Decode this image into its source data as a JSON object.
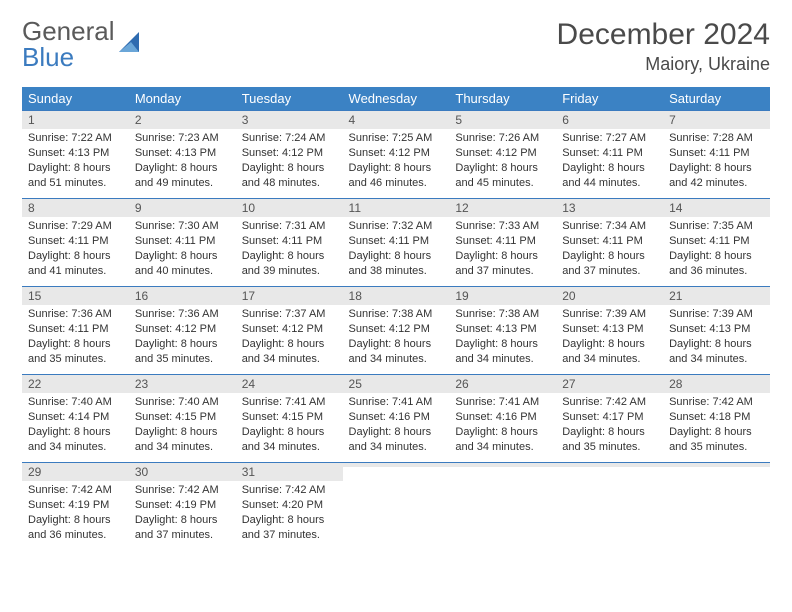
{
  "brand": {
    "part1": "General",
    "part2": "Blue"
  },
  "title": "December 2024",
  "location": "Maiory, Ukraine",
  "colors": {
    "header_bg": "#3b82c4",
    "header_fg": "#ffffff",
    "daynum_bg": "#e8e8e8",
    "border": "#3b7bbf",
    "text": "#333333"
  },
  "day_headers": [
    "Sunday",
    "Monday",
    "Tuesday",
    "Wednesday",
    "Thursday",
    "Friday",
    "Saturday"
  ],
  "weeks": [
    [
      {
        "n": "1",
        "sr": "Sunrise: 7:22 AM",
        "ss": "Sunset: 4:13 PM",
        "dl": "Daylight: 8 hours and 51 minutes."
      },
      {
        "n": "2",
        "sr": "Sunrise: 7:23 AM",
        "ss": "Sunset: 4:13 PM",
        "dl": "Daylight: 8 hours and 49 minutes."
      },
      {
        "n": "3",
        "sr": "Sunrise: 7:24 AM",
        "ss": "Sunset: 4:12 PM",
        "dl": "Daylight: 8 hours and 48 minutes."
      },
      {
        "n": "4",
        "sr": "Sunrise: 7:25 AM",
        "ss": "Sunset: 4:12 PM",
        "dl": "Daylight: 8 hours and 46 minutes."
      },
      {
        "n": "5",
        "sr": "Sunrise: 7:26 AM",
        "ss": "Sunset: 4:12 PM",
        "dl": "Daylight: 8 hours and 45 minutes."
      },
      {
        "n": "6",
        "sr": "Sunrise: 7:27 AM",
        "ss": "Sunset: 4:11 PM",
        "dl": "Daylight: 8 hours and 44 minutes."
      },
      {
        "n": "7",
        "sr": "Sunrise: 7:28 AM",
        "ss": "Sunset: 4:11 PM",
        "dl": "Daylight: 8 hours and 42 minutes."
      }
    ],
    [
      {
        "n": "8",
        "sr": "Sunrise: 7:29 AM",
        "ss": "Sunset: 4:11 PM",
        "dl": "Daylight: 8 hours and 41 minutes."
      },
      {
        "n": "9",
        "sr": "Sunrise: 7:30 AM",
        "ss": "Sunset: 4:11 PM",
        "dl": "Daylight: 8 hours and 40 minutes."
      },
      {
        "n": "10",
        "sr": "Sunrise: 7:31 AM",
        "ss": "Sunset: 4:11 PM",
        "dl": "Daylight: 8 hours and 39 minutes."
      },
      {
        "n": "11",
        "sr": "Sunrise: 7:32 AM",
        "ss": "Sunset: 4:11 PM",
        "dl": "Daylight: 8 hours and 38 minutes."
      },
      {
        "n": "12",
        "sr": "Sunrise: 7:33 AM",
        "ss": "Sunset: 4:11 PM",
        "dl": "Daylight: 8 hours and 37 minutes."
      },
      {
        "n": "13",
        "sr": "Sunrise: 7:34 AM",
        "ss": "Sunset: 4:11 PM",
        "dl": "Daylight: 8 hours and 37 minutes."
      },
      {
        "n": "14",
        "sr": "Sunrise: 7:35 AM",
        "ss": "Sunset: 4:11 PM",
        "dl": "Daylight: 8 hours and 36 minutes."
      }
    ],
    [
      {
        "n": "15",
        "sr": "Sunrise: 7:36 AM",
        "ss": "Sunset: 4:11 PM",
        "dl": "Daylight: 8 hours and 35 minutes."
      },
      {
        "n": "16",
        "sr": "Sunrise: 7:36 AM",
        "ss": "Sunset: 4:12 PM",
        "dl": "Daylight: 8 hours and 35 minutes."
      },
      {
        "n": "17",
        "sr": "Sunrise: 7:37 AM",
        "ss": "Sunset: 4:12 PM",
        "dl": "Daylight: 8 hours and 34 minutes."
      },
      {
        "n": "18",
        "sr": "Sunrise: 7:38 AM",
        "ss": "Sunset: 4:12 PM",
        "dl": "Daylight: 8 hours and 34 minutes."
      },
      {
        "n": "19",
        "sr": "Sunrise: 7:38 AM",
        "ss": "Sunset: 4:13 PM",
        "dl": "Daylight: 8 hours and 34 minutes."
      },
      {
        "n": "20",
        "sr": "Sunrise: 7:39 AM",
        "ss": "Sunset: 4:13 PM",
        "dl": "Daylight: 8 hours and 34 minutes."
      },
      {
        "n": "21",
        "sr": "Sunrise: 7:39 AM",
        "ss": "Sunset: 4:13 PM",
        "dl": "Daylight: 8 hours and 34 minutes."
      }
    ],
    [
      {
        "n": "22",
        "sr": "Sunrise: 7:40 AM",
        "ss": "Sunset: 4:14 PM",
        "dl": "Daylight: 8 hours and 34 minutes."
      },
      {
        "n": "23",
        "sr": "Sunrise: 7:40 AM",
        "ss": "Sunset: 4:15 PM",
        "dl": "Daylight: 8 hours and 34 minutes."
      },
      {
        "n": "24",
        "sr": "Sunrise: 7:41 AM",
        "ss": "Sunset: 4:15 PM",
        "dl": "Daylight: 8 hours and 34 minutes."
      },
      {
        "n": "25",
        "sr": "Sunrise: 7:41 AM",
        "ss": "Sunset: 4:16 PM",
        "dl": "Daylight: 8 hours and 34 minutes."
      },
      {
        "n": "26",
        "sr": "Sunrise: 7:41 AM",
        "ss": "Sunset: 4:16 PM",
        "dl": "Daylight: 8 hours and 34 minutes."
      },
      {
        "n": "27",
        "sr": "Sunrise: 7:42 AM",
        "ss": "Sunset: 4:17 PM",
        "dl": "Daylight: 8 hours and 35 minutes."
      },
      {
        "n": "28",
        "sr": "Sunrise: 7:42 AM",
        "ss": "Sunset: 4:18 PM",
        "dl": "Daylight: 8 hours and 35 minutes."
      }
    ],
    [
      {
        "n": "29",
        "sr": "Sunrise: 7:42 AM",
        "ss": "Sunset: 4:19 PM",
        "dl": "Daylight: 8 hours and 36 minutes."
      },
      {
        "n": "30",
        "sr": "Sunrise: 7:42 AM",
        "ss": "Sunset: 4:19 PM",
        "dl": "Daylight: 8 hours and 37 minutes."
      },
      {
        "n": "31",
        "sr": "Sunrise: 7:42 AM",
        "ss": "Sunset: 4:20 PM",
        "dl": "Daylight: 8 hours and 37 minutes."
      },
      {
        "n": "",
        "sr": "",
        "ss": "",
        "dl": ""
      },
      {
        "n": "",
        "sr": "",
        "ss": "",
        "dl": ""
      },
      {
        "n": "",
        "sr": "",
        "ss": "",
        "dl": ""
      },
      {
        "n": "",
        "sr": "",
        "ss": "",
        "dl": ""
      }
    ]
  ]
}
